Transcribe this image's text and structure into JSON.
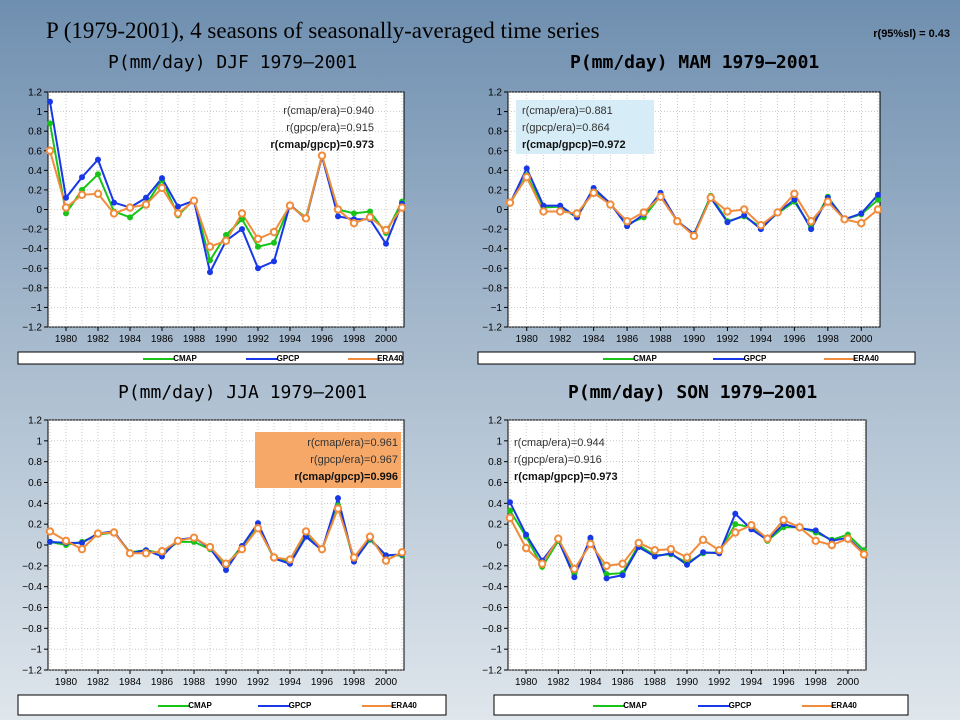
{
  "header": {
    "title": "P (1979-2001), 4 seasons of seasonally-averaged time series",
    "significance": "r(95%sl) = 0.43"
  },
  "colors": {
    "cmap": "#18c418",
    "gpcp": "#1838e8",
    "era40": "#f08c3c"
  },
  "chart_data": [
    {
      "type": "line",
      "title": "P(mm/day) DJF 1979–2001",
      "x": [
        1979,
        1980,
        1981,
        1982,
        1983,
        1984,
        1985,
        1986,
        1987,
        1988,
        1989,
        1990,
        1991,
        1992,
        1993,
        1994,
        1995,
        1996,
        1997,
        1998,
        1999,
        2000,
        2001
      ],
      "ylim": [
        -1.2,
        1.2
      ],
      "yticks": [
        "1.2",
        "1",
        "0.8",
        "0.6",
        "0.4",
        "0.2",
        "0",
        "−0.2",
        "−0.4",
        "−0.6",
        "−0.8",
        "−1",
        "−1.2"
      ],
      "xticks": [
        "1980",
        "1982",
        "1984",
        "1986",
        "1988",
        "1990",
        "1992",
        "1994",
        "1996",
        "1998",
        "2000"
      ],
      "legend": [
        "CMAP",
        "GPCP",
        "ERA40"
      ],
      "legend_position": "bottom",
      "correlations": [
        "r(cmap/era)=0.940",
        "r(gpcp/era)=0.915",
        "r(cmap/gpcp)=0.973"
      ],
      "series": [
        {
          "name": "CMAP",
          "values": [
            0.88,
            -0.04,
            0.2,
            0.36,
            -0.02,
            -0.08,
            0.05,
            0.3,
            -0.06,
            0.1,
            -0.52,
            -0.26,
            -0.1,
            -0.38,
            -0.34,
            0.04,
            -0.08,
            0.55,
            0.0,
            -0.04,
            -0.02,
            -0.24,
            0.08
          ]
        },
        {
          "name": "GPCP",
          "values": [
            1.1,
            0.12,
            0.33,
            0.51,
            0.07,
            0.02,
            0.12,
            0.32,
            0.03,
            0.09,
            -0.64,
            -0.32,
            -0.2,
            -0.6,
            -0.53,
            0.05,
            -0.1,
            0.54,
            -0.07,
            -0.1,
            -0.1,
            -0.35,
            0.06
          ]
        },
        {
          "name": "ERA40",
          "values": [
            0.6,
            0.02,
            0.15,
            0.16,
            -0.04,
            0.02,
            0.05,
            0.22,
            -0.04,
            0.09,
            -0.38,
            -0.32,
            -0.04,
            -0.3,
            -0.23,
            0.04,
            -0.09,
            0.55,
            0.0,
            -0.14,
            -0.08,
            -0.21,
            0.02
          ]
        }
      ]
    },
    {
      "type": "line",
      "title": "P(mm/day) MAM 1979–2001",
      "x": [
        1979,
        1980,
        1981,
        1982,
        1983,
        1984,
        1985,
        1986,
        1987,
        1988,
        1989,
        1990,
        1991,
        1992,
        1993,
        1994,
        1995,
        1996,
        1997,
        1998,
        1999,
        2000,
        2001
      ],
      "ylim": [
        -1.2,
        1.2
      ],
      "yticks": [
        "1.2",
        "1",
        "0.8",
        "0.6",
        "0.4",
        "0.2",
        "0",
        "−0.2",
        "−0.4",
        "−0.6",
        "−0.8",
        "−1",
        "−1.2"
      ],
      "xticks": [
        "1980",
        "1982",
        "1984",
        "1986",
        "1988",
        "1990",
        "1992",
        "1994",
        "1996",
        "1998",
        "2000"
      ],
      "legend": [
        "CMAP",
        "GPCP",
        "ERA40"
      ],
      "legend_position": "bottom",
      "correlations": [
        "r(cmap/era)=0.881",
        "r(gpcp/era)=0.864",
        "r(cmap/gpcp)=0.972"
      ],
      "series": [
        {
          "name": "CMAP",
          "values": [
            0.06,
            0.35,
            0.02,
            0.03,
            -0.08,
            0.2,
            0.06,
            -0.15,
            -0.08,
            0.14,
            -0.12,
            -0.25,
            0.14,
            -0.12,
            -0.07,
            -0.18,
            -0.04,
            0.08,
            -0.18,
            0.13,
            -0.1,
            -0.05,
            0.1
          ]
        },
        {
          "name": "GPCP",
          "values": [
            0.06,
            0.42,
            0.04,
            0.04,
            -0.08,
            0.22,
            0.06,
            -0.17,
            -0.05,
            0.17,
            -0.12,
            -0.25,
            0.12,
            -0.13,
            -0.06,
            -0.2,
            -0.03,
            0.1,
            -0.2,
            0.12,
            -0.1,
            -0.04,
            0.15
          ]
        },
        {
          "name": "ERA40",
          "values": [
            0.07,
            0.33,
            -0.02,
            -0.02,
            -0.04,
            0.17,
            0.05,
            -0.12,
            -0.03,
            0.13,
            -0.12,
            -0.27,
            0.12,
            -0.02,
            0.0,
            -0.16,
            -0.03,
            0.16,
            -0.12,
            0.08,
            -0.1,
            -0.14,
            0.0
          ]
        }
      ]
    },
    {
      "type": "line",
      "title": "P(mm/day) JJA 1979–2001",
      "x": [
        1979,
        1980,
        1981,
        1982,
        1983,
        1984,
        1985,
        1986,
        1987,
        1988,
        1989,
        1990,
        1991,
        1992,
        1993,
        1994,
        1995,
        1996,
        1997,
        1998,
        1999,
        2000,
        2001
      ],
      "ylim": [
        -1.2,
        1.2
      ],
      "yticks": [
        "1.2",
        "1",
        "0.8",
        "0.6",
        "0.4",
        "0.2",
        "0",
        "−0.2",
        "−0.4",
        "−0.6",
        "−0.8",
        "−1",
        "−1.2"
      ],
      "xticks": [
        "1980",
        "1982",
        "1984",
        "1986",
        "1988",
        "1990",
        "1992",
        "1994",
        "1996",
        "1998",
        "2000"
      ],
      "legend": [
        "CMAP",
        "GPCP",
        "ERA40"
      ],
      "legend_position": "bottom",
      "correlations": [
        "r(cmap/era)=0.961",
        "r(gpcp/era)=0.967",
        "r(cmap/gpcp)=0.996"
      ],
      "series": [
        {
          "name": "CMAP",
          "values": [
            0.03,
            0.0,
            0.03,
            0.1,
            0.12,
            -0.07,
            -0.05,
            -0.08,
            0.03,
            0.03,
            -0.04,
            -0.2,
            -0.01,
            0.17,
            -0.13,
            -0.16,
            0.1,
            -0.05,
            0.38,
            -0.15,
            0.05,
            -0.1,
            -0.1
          ]
        },
        {
          "name": "GPCP",
          "values": [
            0.03,
            0.02,
            0.02,
            0.11,
            0.13,
            -0.08,
            -0.05,
            -0.11,
            0.05,
            0.07,
            -0.03,
            -0.24,
            -0.01,
            0.21,
            -0.13,
            -0.18,
            0.08,
            -0.05,
            0.45,
            -0.16,
            0.06,
            -0.1,
            -0.09
          ]
        },
        {
          "name": "ERA40",
          "values": [
            0.13,
            0.04,
            -0.04,
            0.11,
            0.12,
            -0.08,
            -0.08,
            -0.06,
            0.04,
            0.07,
            -0.02,
            -0.18,
            -0.04,
            0.16,
            -0.12,
            -0.14,
            0.13,
            -0.04,
            0.35,
            -0.12,
            0.08,
            -0.15,
            -0.07
          ]
        }
      ]
    },
    {
      "type": "line",
      "title": "P(mm/day) SON 1979–2001",
      "x": [
        1979,
        1980,
        1981,
        1982,
        1983,
        1984,
        1985,
        1986,
        1987,
        1988,
        1989,
        1990,
        1991,
        1992,
        1993,
        1994,
        1995,
        1996,
        1997,
        1998,
        1999,
        2000,
        2001
      ],
      "ylim": [
        -1.2,
        1.2
      ],
      "yticks": [
        "1.2",
        "1",
        "0.8",
        "0.6",
        "0.4",
        "0.2",
        "0",
        "−0.2",
        "−0.4",
        "−0.6",
        "−0.8",
        "−1",
        "−1.2"
      ],
      "xticks": [
        "1980",
        "1982",
        "1984",
        "1986",
        "1988",
        "1990",
        "1992",
        "1994",
        "1996",
        "1998",
        "2000"
      ],
      "legend": [
        "CMAP",
        "GPCP",
        "ERA40"
      ],
      "legend_position": "bottom",
      "correlations": [
        "r(cmap/era)=0.944",
        "r(gpcp/era)=0.916",
        "r(cmap/gpcp)=0.973"
      ],
      "series": [
        {
          "name": "CMAP",
          "values": [
            0.33,
            0.08,
            -0.21,
            0.04,
            -0.28,
            0.05,
            -0.28,
            -0.27,
            0.0,
            -0.1,
            -0.09,
            -0.17,
            -0.08,
            -0.07,
            0.2,
            0.17,
            0.04,
            0.17,
            0.17,
            0.12,
            0.05,
            0.1,
            -0.05
          ]
        },
        {
          "name": "GPCP",
          "values": [
            0.41,
            0.1,
            -0.15,
            0.05,
            -0.31,
            0.07,
            -0.32,
            -0.29,
            -0.02,
            -0.11,
            -0.08,
            -0.19,
            -0.07,
            -0.08,
            0.3,
            0.15,
            0.05,
            0.2,
            0.16,
            0.14,
            0.04,
            0.07,
            -0.08
          ]
        },
        {
          "name": "ERA40",
          "values": [
            0.26,
            -0.03,
            -0.18,
            0.06,
            -0.23,
            0.01,
            -0.2,
            -0.18,
            0.02,
            -0.05,
            -0.04,
            -0.12,
            0.05,
            -0.05,
            0.12,
            0.19,
            0.06,
            0.24,
            0.17,
            0.04,
            0.0,
            0.06,
            -0.09
          ]
        }
      ]
    }
  ]
}
